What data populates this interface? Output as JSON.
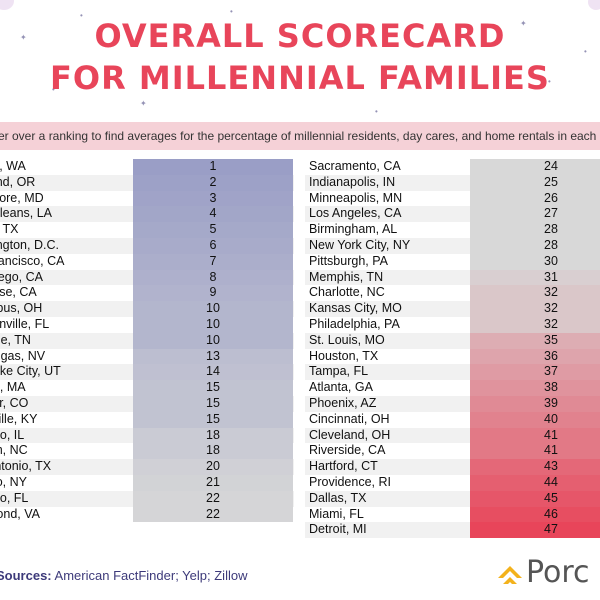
{
  "title": {
    "line1": "OVERALL SCORECARD",
    "line2": "FOR MILLENNIAL FAMILIES"
  },
  "instruction": "ver over a ranking to find averages for the percentage of millennial residents, day cares, and home rentals in each c",
  "left_rows": [
    {
      "city": "tle, WA",
      "rank": "1"
    },
    {
      "city": "land, OR",
      "rank": "2"
    },
    {
      "city": "imore, MD",
      "rank": "3"
    },
    {
      "city": " Orleans, LA",
      "rank": "4"
    },
    {
      "city": "in, TX",
      "rank": "5"
    },
    {
      "city": "nington, D.C.",
      "rank": "6"
    },
    {
      "city": "Francisco, CA",
      "rank": "7"
    },
    {
      "city": "Diego, CA",
      "rank": "8"
    },
    {
      "city": "Jose, CA",
      "rank": "9"
    },
    {
      "city": "mbus, OH",
      "rank": "10"
    },
    {
      "city": "sonville, FL",
      "rank": "10"
    },
    {
      "city": "ville, TN",
      "rank": "10"
    },
    {
      "city": "Vegas, NV",
      "rank": "13"
    },
    {
      "city": "Lake City, UT",
      "rank": "14"
    },
    {
      "city": "on, MA",
      "rank": "15"
    },
    {
      "city": "ver, CO",
      "rank": "15"
    },
    {
      "city": "sville, KY",
      "rank": "15"
    },
    {
      "city": "ago, IL",
      "rank": "18"
    },
    {
      "city": "igh, NC",
      "rank": "18"
    },
    {
      "city": "Antonio, TX",
      "rank": "20"
    },
    {
      "city": "alo, NY",
      "rank": "21"
    },
    {
      "city": "ndo, FL",
      "rank": "22"
    },
    {
      "city": "mond, VA",
      "rank": "22"
    }
  ],
  "right_rows": [
    {
      "city": "Sacramento, CA",
      "rank": "24"
    },
    {
      "city": "Indianapolis, IN",
      "rank": "25"
    },
    {
      "city": "Minneapolis, MN",
      "rank": "26"
    },
    {
      "city": "Los Angeles, CA",
      "rank": "27"
    },
    {
      "city": "Birmingham, AL",
      "rank": "28"
    },
    {
      "city": "New York City, NY",
      "rank": "28"
    },
    {
      "city": "Pittsburgh, PA",
      "rank": "30"
    },
    {
      "city": "Memphis, TN",
      "rank": "31"
    },
    {
      "city": "Charlotte, NC",
      "rank": "32"
    },
    {
      "city": "Kansas City, MO",
      "rank": "32"
    },
    {
      "city": "Philadelphia, PA",
      "rank": "32"
    },
    {
      "city": "St. Louis, MO",
      "rank": "35"
    },
    {
      "city": "Houston, TX",
      "rank": "36"
    },
    {
      "city": "Tampa, FL",
      "rank": "37"
    },
    {
      "city": "Atlanta, GA",
      "rank": "38"
    },
    {
      "city": "Phoenix, AZ",
      "rank": "39"
    },
    {
      "city": "Cincinnati, OH",
      "rank": "40"
    },
    {
      "city": "Cleveland, OH",
      "rank": "41"
    },
    {
      "city": "Riverside, CA",
      "rank": "41"
    },
    {
      "city": "Hartford, CT",
      "rank": "43"
    },
    {
      "city": "Providence, RI",
      "rank": "44"
    },
    {
      "city": "Dallas, TX",
      "rank": "45"
    },
    {
      "city": "Miami, FL",
      "rank": "46"
    },
    {
      "city": "Detroit, MI",
      "rank": "47"
    }
  ],
  "sources": {
    "label": "Sources:",
    "text": "American FactFinder; Yelp; Zillow"
  },
  "logo": {
    "text": "Porc",
    "icon": "chevron-logo-icon"
  },
  "colors": {
    "title": "#e8455a",
    "banner": "#f5d1d7",
    "rank_best": "#9a9ec6",
    "rank_mid": "#d8d8d8",
    "rank_worst": "#e8455a",
    "logo_chevron": "#f3b21c",
    "sources": "#3d3a7a"
  }
}
